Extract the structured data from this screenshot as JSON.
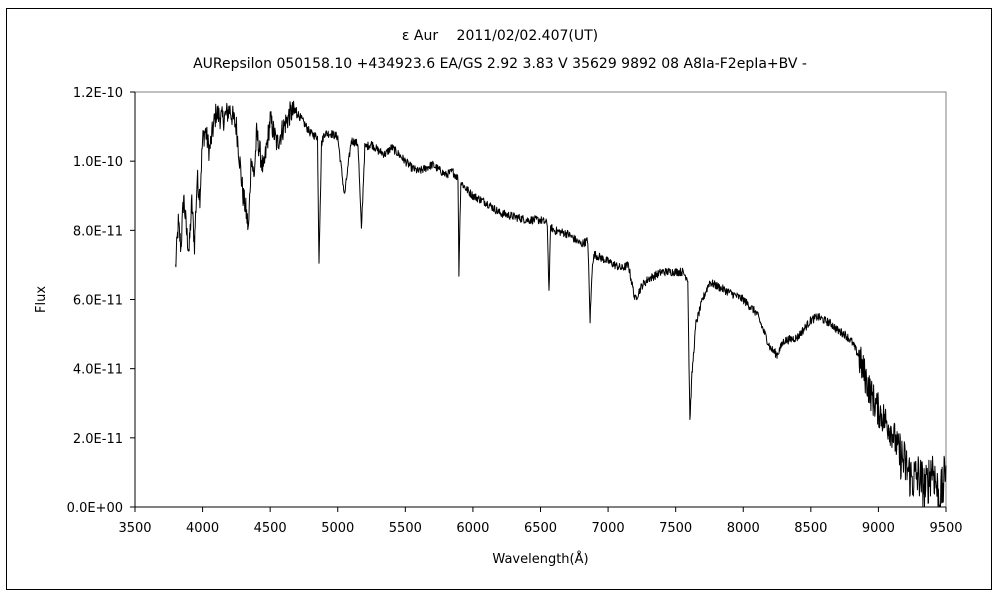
{
  "chart_data": {
    "type": "line",
    "title": "ε Aur　 2011/02/02.407(UT)",
    "subtitle": "AURepsilon 050158.10 +434923.6 EA/GS 2.92 3.83 V 35629 9892 08 A8Ia-F2epIa+BV -",
    "xlabel": "Wavelength(Å)",
    "ylabel": "Flux",
    "xlim": [
      3500,
      9500
    ],
    "ylim": [
      0,
      1.2e-10
    ],
    "xticks": [
      3500,
      4000,
      4500,
      5000,
      5500,
      6000,
      6500,
      7000,
      7500,
      8000,
      8500,
      9000,
      9500
    ],
    "yticks": [
      0,
      2e-11,
      4e-11,
      6e-11,
      8e-11,
      1e-10,
      1.2e-10
    ],
    "yticklabels": [
      "0.0E+00",
      "2.0E-11",
      "4.0E-11",
      "6.0E-11",
      "8.0E-11",
      "1.0E-10",
      "1.2E-10"
    ],
    "grid": false,
    "legend": "none",
    "line_color": "#000000",
    "series": [
      {
        "x": [
          3800,
          3820,
          3840,
          3860,
          3880,
          3900,
          3920,
          3940,
          3960,
          3980,
          4000,
          4020,
          4050,
          4080,
          4100,
          4150,
          4200,
          4250,
          4300,
          4320,
          4340,
          4360,
          4380,
          4400,
          4450,
          4500,
          4550,
          4600,
          4650,
          4700,
          4750,
          4800,
          4850,
          4861,
          4880,
          4900,
          4950,
          5000,
          5050,
          5100,
          5150,
          5175,
          5200,
          5250,
          5300,
          5350,
          5400,
          5450,
          5500,
          5550,
          5600,
          5700,
          5800,
          5850,
          5890,
          5896,
          5910,
          5950,
          6000,
          6100,
          6200,
          6300,
          6400,
          6500,
          6550,
          6563,
          6575,
          6600,
          6700,
          6800,
          6850,
          6867,
          6885,
          6900,
          7000,
          7100,
          7150,
          7200,
          7250,
          7300,
          7400,
          7500,
          7550,
          7590,
          7605,
          7620,
          7650,
          7700,
          7750,
          7800,
          7900,
          8000,
          8100,
          8200,
          8250,
          8300,
          8400,
          8500,
          8550,
          8600,
          8650,
          8700,
          8750,
          8800,
          8850,
          8900,
          8950,
          9000,
          9050,
          9100,
          9150,
          9200,
          9250,
          9300,
          9350,
          9400,
          9450,
          9480,
          9500
        ],
        "y": [
          6.9e-11,
          8.2e-11,
          7.5e-11,
          9e-11,
          8e-11,
          7.4e-11,
          8.8e-11,
          7.6e-11,
          9.5e-11,
          9e-11,
          1.06e-10,
          1.09e-10,
          1.03e-10,
          1.1e-10,
          1.14e-10,
          1.12e-10,
          1.15e-10,
          1.1e-10,
          9e-11,
          8.6e-11,
          8e-11,
          1.02e-10,
          9.5e-11,
          1.08e-10,
          9.7e-11,
          1.12e-10,
          1.05e-10,
          1.1e-10,
          1.14e-10,
          1.14e-10,
          1.11e-10,
          1.08e-10,
          1.07e-10,
          7.1e-11,
          1.05e-10,
          1.08e-10,
          1.08e-10,
          1.07e-10,
          9e-11,
          1.06e-10,
          1.05e-10,
          8e-11,
          1.04e-10,
          1.05e-10,
          1.03e-10,
          1.02e-10,
          1.04e-10,
          1.02e-10,
          1e-10,
          9.8e-11,
          9.7e-11,
          9.9e-11,
          9.6e-11,
          9.7e-11,
          9.5e-11,
          6.7e-11,
          9.4e-11,
          9.2e-11,
          9e-11,
          8.8e-11,
          8.5e-11,
          8.4e-11,
          8.3e-11,
          8.3e-11,
          8.2e-11,
          6.2e-11,
          8.1e-11,
          8e-11,
          7.9e-11,
          7.6e-11,
          7.7e-11,
          5.4e-11,
          7.1e-11,
          7.3e-11,
          7.1e-11,
          6.9e-11,
          7e-11,
          6e-11,
          6.4e-11,
          6.6e-11,
          6.8e-11,
          6.8e-11,
          6.8e-11,
          6.6e-11,
          2.5e-11,
          3.8e-11,
          5.3e-11,
          6e-11,
          6.5e-11,
          6.4e-11,
          6.2e-11,
          6e-11,
          5.6e-11,
          4.6e-11,
          4.4e-11,
          4.8e-11,
          4.9e-11,
          5.4e-11,
          5.5e-11,
          5.4e-11,
          5.3e-11,
          5.1e-11,
          5e-11,
          4.8e-11,
          4.4e-11,
          3.8e-11,
          3.2e-11,
          2.8e-11,
          2.5e-11,
          2.2e-11,
          1.6e-11,
          1.2e-11,
          8e-12,
          9e-12,
          5e-12,
          1.2e-11,
          2e-12,
          6e-12,
          1.2e-11
        ]
      }
    ]
  }
}
